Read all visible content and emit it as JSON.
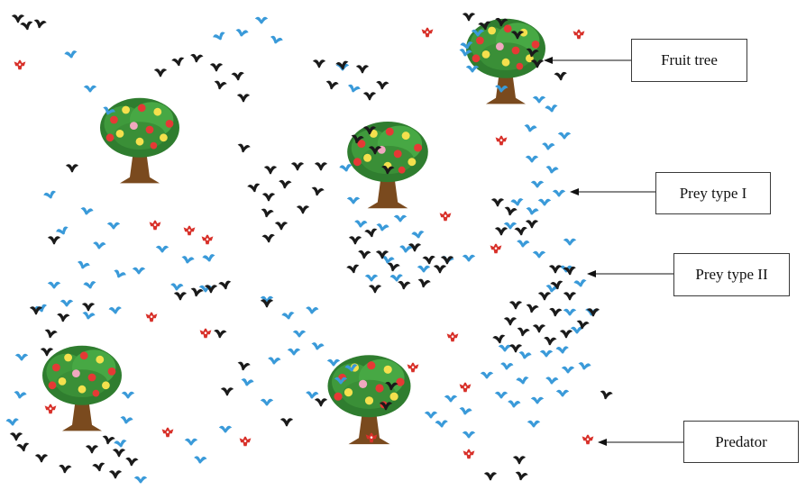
{
  "labels": {
    "fruit_tree": "Fruit tree",
    "prey_type_1": "Prey type I",
    "prey_type_2": "Prey type II",
    "predator": "Predator"
  },
  "icons": {
    "tree": "fruit-tree-icon",
    "prey_1": "blue-bird-icon",
    "prey_2": "black-bird-icon",
    "predator": "red-bird-icon"
  },
  "colors": {
    "prey_type_1": "#3a9ad9",
    "prey_type_2": "#1a1a1a",
    "predator": "#d8312a",
    "foliage": "#3f9a3c",
    "trunk": "#7a4a1e"
  }
}
